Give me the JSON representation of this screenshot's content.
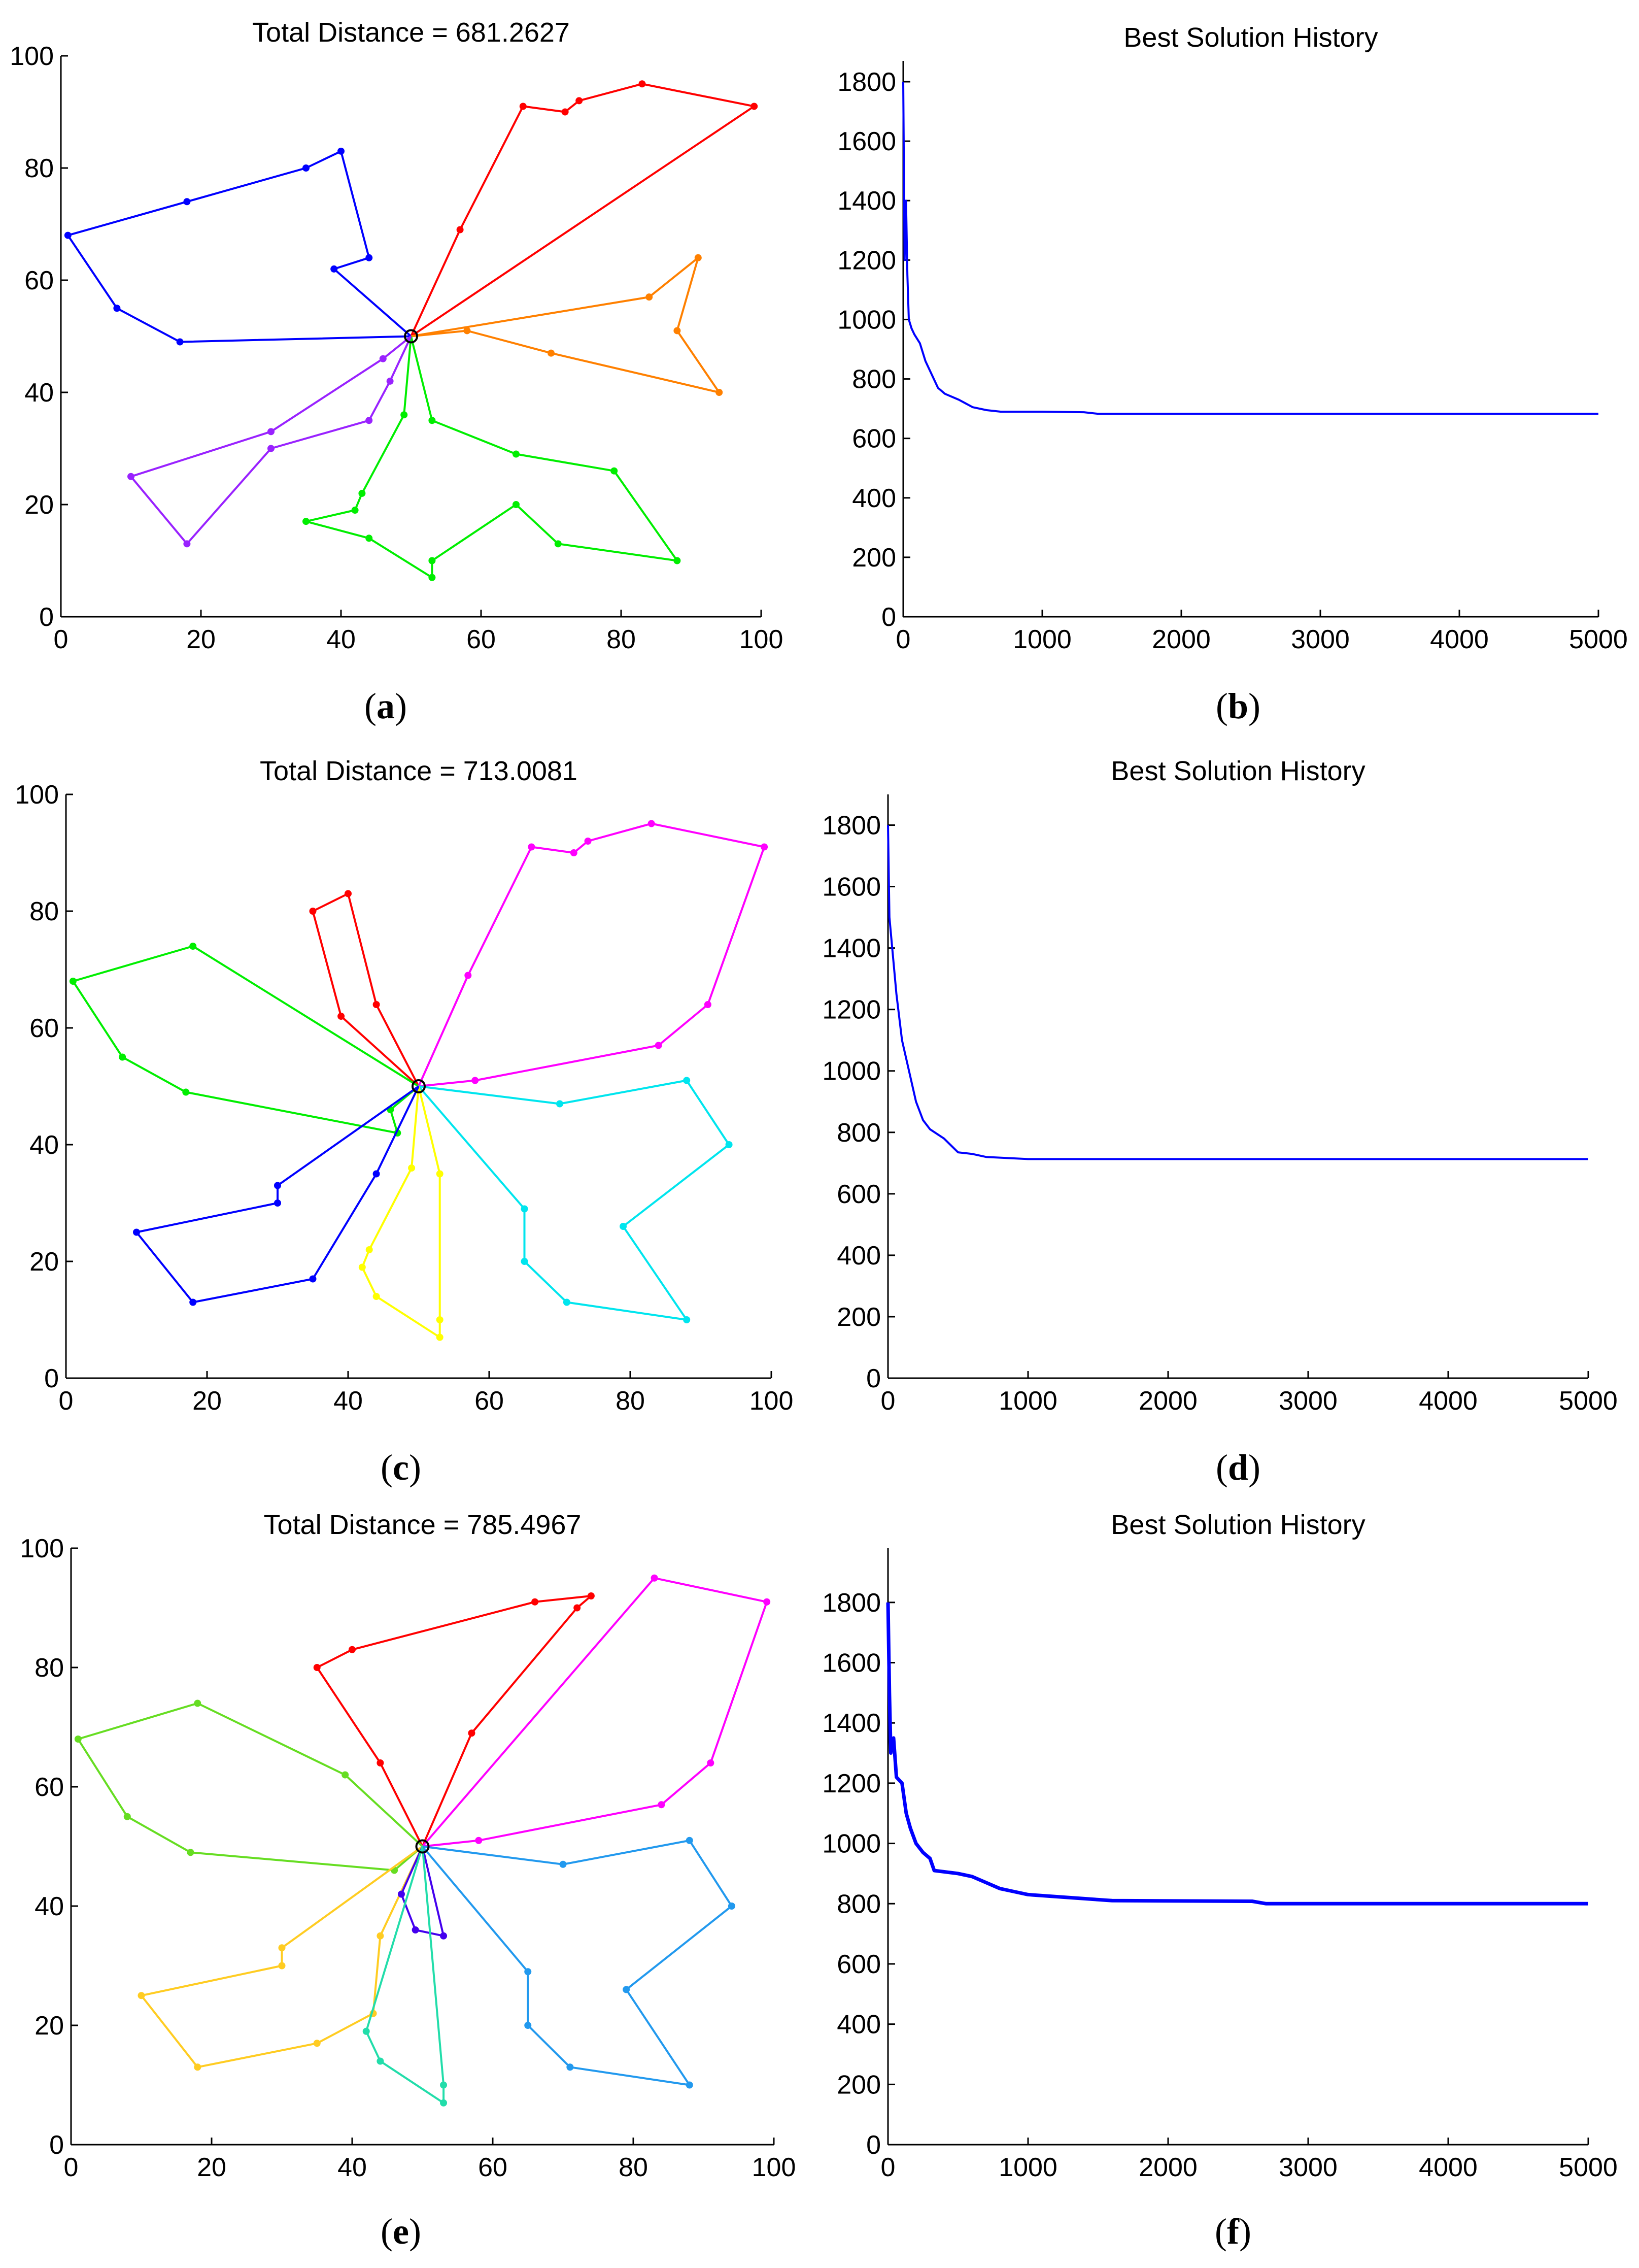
{
  "colors": {
    "red": "#ff0000",
    "blue": "#0000ff",
    "orange": "#ff8000",
    "green": "#00ee00",
    "purple": "#9922ff",
    "magenta": "#ff00ff",
    "cyan": "#00e5ee",
    "yellow": "#ffff00",
    "sky": "#2299ee",
    "lime": "#66dd22",
    "gold": "#ffcc22",
    "violet": "#4400ee",
    "teal": "#22ddaa",
    "depot": "#000000"
  },
  "chart_data": [
    {
      "panel": "a",
      "type": "line",
      "subtype": "route-map",
      "title": "Total Distance = 681.2627",
      "caption": "(a)",
      "xlim": [
        0,
        100
      ],
      "ylim": [
        0,
        100
      ],
      "xticks": [
        0,
        20,
        40,
        60,
        80,
        100
      ],
      "yticks": [
        0,
        20,
        40,
        60,
        80,
        100
      ],
      "depot": [
        50,
        50
      ],
      "series": [
        {
          "name": "route 1",
          "color": "red",
          "points": [
            [
              50,
              50
            ],
            [
              57,
              69
            ],
            [
              66,
              91
            ],
            [
              72,
              90
            ],
            [
              74,
              92
            ],
            [
              83,
              95
            ],
            [
              99,
              91
            ],
            [
              50,
              50
            ]
          ]
        },
        {
          "name": "route 2",
          "color": "blue",
          "points": [
            [
              50,
              50
            ],
            [
              39,
              62
            ],
            [
              44,
              64
            ],
            [
              40,
              83
            ],
            [
              35,
              80
            ],
            [
              18,
              74
            ],
            [
              1,
              68
            ],
            [
              8,
              55
            ],
            [
              17,
              49
            ],
            [
              50,
              50
            ]
          ]
        },
        {
          "name": "route 3",
          "color": "orange",
          "points": [
            [
              50,
              50
            ],
            [
              84,
              57
            ],
            [
              91,
              64
            ],
            [
              88,
              51
            ],
            [
              94,
              40
            ],
            [
              70,
              47
            ],
            [
              58,
              51
            ],
            [
              50,
              50
            ]
          ]
        },
        {
          "name": "route 4",
          "color": "green",
          "points": [
            [
              50,
              50
            ],
            [
              53,
              35
            ],
            [
              65,
              29
            ],
            [
              79,
              26
            ],
            [
              88,
              10
            ],
            [
              71,
              13
            ],
            [
              65,
              20
            ],
            [
              53,
              10
            ],
            [
              53,
              7
            ],
            [
              44,
              14
            ],
            [
              35,
              17
            ],
            [
              42,
              19
            ],
            [
              43,
              22
            ],
            [
              49,
              36
            ],
            [
              50,
              50
            ]
          ]
        },
        {
          "name": "route 5",
          "color": "purple",
          "points": [
            [
              50,
              50
            ],
            [
              46,
              46
            ],
            [
              30,
              33
            ],
            [
              10,
              25
            ],
            [
              18,
              13
            ],
            [
              30,
              30
            ],
            [
              44,
              35
            ],
            [
              47,
              42
            ],
            [
              50,
              50
            ]
          ]
        }
      ]
    },
    {
      "panel": "b",
      "type": "line",
      "title": "Best Solution History",
      "caption": "(b)",
      "xlim": [
        0,
        5000
      ],
      "ylim": [
        0,
        1870
      ],
      "xticks": [
        0,
        1000,
        2000,
        3000,
        4000,
        5000
      ],
      "yticks": [
        0,
        200,
        400,
        600,
        800,
        1000,
        1200,
        1400,
        1600,
        1800
      ],
      "series": [
        {
          "name": "best",
          "color": "blue",
          "points": [
            [
              0,
              1800
            ],
            [
              10,
              1200
            ],
            [
              20,
              1400
            ],
            [
              30,
              1150
            ],
            [
              40,
              1000
            ],
            [
              60,
              970
            ],
            [
              80,
              950
            ],
            [
              120,
              920
            ],
            [
              160,
              860
            ],
            [
              200,
              820
            ],
            [
              250,
              770
            ],
            [
              300,
              750
            ],
            [
              400,
              730
            ],
            [
              500,
              705
            ],
            [
              600,
              695
            ],
            [
              700,
              690
            ],
            [
              1000,
              690
            ],
            [
              1300,
              688
            ],
            [
              1400,
              683
            ],
            [
              2000,
              683
            ],
            [
              3000,
              683
            ],
            [
              5000,
              683
            ]
          ]
        }
      ]
    },
    {
      "panel": "c",
      "type": "line",
      "subtype": "route-map",
      "title": "Total Distance = 713.0081",
      "caption": "(c)",
      "xlim": [
        0,
        100
      ],
      "ylim": [
        0,
        100
      ],
      "xticks": [
        0,
        20,
        40,
        60,
        80,
        100
      ],
      "yticks": [
        0,
        20,
        40,
        60,
        80,
        100
      ],
      "depot": [
        50,
        50
      ],
      "series": [
        {
          "name": "route 1",
          "color": "red",
          "points": [
            [
              50,
              50
            ],
            [
              44,
              64
            ],
            [
              40,
              83
            ],
            [
              35,
              80
            ],
            [
              39,
              62
            ],
            [
              50,
              50
            ]
          ]
        },
        {
          "name": "route 2",
          "color": "green",
          "points": [
            [
              50,
              50
            ],
            [
              18,
              74
            ],
            [
              1,
              68
            ],
            [
              8,
              55
            ],
            [
              17,
              49
            ],
            [
              47,
              42
            ],
            [
              46,
              46
            ],
            [
              50,
              50
            ]
          ]
        },
        {
          "name": "route 3",
          "color": "magenta",
          "points": [
            [
              50,
              50
            ],
            [
              57,
              69
            ],
            [
              66,
              91
            ],
            [
              72,
              90
            ],
            [
              74,
              92
            ],
            [
              83,
              95
            ],
            [
              99,
              91
            ],
            [
              91,
              64
            ],
            [
              84,
              57
            ],
            [
              58,
              51
            ],
            [
              50,
              50
            ]
          ]
        },
        {
          "name": "route 4",
          "color": "cyan",
          "points": [
            [
              50,
              50
            ],
            [
              70,
              47
            ],
            [
              88,
              51
            ],
            [
              94,
              40
            ],
            [
              79,
              26
            ],
            [
              88,
              10
            ],
            [
              71,
              13
            ],
            [
              65,
              20
            ],
            [
              65,
              29
            ],
            [
              50,
              50
            ]
          ]
        },
        {
          "name": "route 5",
          "color": "yellow",
          "points": [
            [
              50,
              50
            ],
            [
              53,
              35
            ],
            [
              53,
              10
            ],
            [
              53,
              7
            ],
            [
              44,
              14
            ],
            [
              42,
              19
            ],
            [
              43,
              22
            ],
            [
              49,
              36
            ],
            [
              50,
              50
            ]
          ]
        },
        {
          "name": "route 6",
          "color": "blue",
          "points": [
            [
              50,
              50
            ],
            [
              30,
              33
            ],
            [
              30,
              30
            ],
            [
              10,
              25
            ],
            [
              18,
              13
            ],
            [
              35,
              17
            ],
            [
              44,
              35
            ],
            [
              50,
              50
            ]
          ]
        }
      ]
    },
    {
      "panel": "d",
      "type": "line",
      "title": "Best Solution History",
      "caption": "(d)",
      "xlim": [
        0,
        5000
      ],
      "ylim": [
        0,
        1900
      ],
      "xticks": [
        0,
        1000,
        2000,
        3000,
        4000,
        5000
      ],
      "yticks": [
        0,
        200,
        400,
        600,
        800,
        1000,
        1200,
        1400,
        1600,
        1800
      ],
      "series": [
        {
          "name": "best",
          "color": "blue",
          "points": [
            [
              0,
              1800
            ],
            [
              10,
              1500
            ],
            [
              30,
              1400
            ],
            [
              60,
              1250
            ],
            [
              100,
              1100
            ],
            [
              150,
              1000
            ],
            [
              200,
              900
            ],
            [
              250,
              840
            ],
            [
              300,
              810
            ],
            [
              400,
              780
            ],
            [
              500,
              735
            ],
            [
              600,
              730
            ],
            [
              700,
              720
            ],
            [
              1000,
              713
            ],
            [
              2000,
              713
            ],
            [
              3000,
              713
            ],
            [
              5000,
              713
            ]
          ]
        }
      ]
    },
    {
      "panel": "e",
      "type": "line",
      "subtype": "route-map",
      "title": "Total Distance = 785.4967",
      "caption": "(e)",
      "xlim": [
        0,
        100
      ],
      "ylim": [
        0,
        100
      ],
      "xticks": [
        0,
        20,
        40,
        60,
        80,
        100
      ],
      "yticks": [
        0,
        20,
        40,
        60,
        80,
        100
      ],
      "depot": [
        50,
        50
      ],
      "series": [
        {
          "name": "route 1",
          "color": "red",
          "points": [
            [
              50,
              50
            ],
            [
              57,
              69
            ],
            [
              72,
              90
            ],
            [
              74,
              92
            ],
            [
              66,
              91
            ],
            [
              40,
              83
            ],
            [
              35,
              80
            ],
            [
              44,
              64
            ],
            [
              50,
              50
            ]
          ]
        },
        {
          "name": "route 2",
          "color": "magenta",
          "points": [
            [
              50,
              50
            ],
            [
              83,
              95
            ],
            [
              99,
              91
            ],
            [
              91,
              64
            ],
            [
              84,
              57
            ],
            [
              58,
              51
            ],
            [
              50,
              50
            ]
          ]
        },
        {
          "name": "route 3",
          "color": "lime",
          "points": [
            [
              50,
              50
            ],
            [
              39,
              62
            ],
            [
              18,
              74
            ],
            [
              1,
              68
            ],
            [
              8,
              55
            ],
            [
              17,
              49
            ],
            [
              46,
              46
            ],
            [
              50,
              50
            ]
          ]
        },
        {
          "name": "route 4",
          "color": "gold",
          "points": [
            [
              50,
              50
            ],
            [
              30,
              33
            ],
            [
              30,
              30
            ],
            [
              10,
              25
            ],
            [
              18,
              13
            ],
            [
              35,
              17
            ],
            [
              43,
              22
            ],
            [
              44,
              35
            ],
            [
              50,
              50
            ]
          ]
        },
        {
          "name": "route 5",
          "color": "sky",
          "points": [
            [
              50,
              50
            ],
            [
              70,
              47
            ],
            [
              88,
              51
            ],
            [
              94,
              40
            ],
            [
              79,
              26
            ],
            [
              88,
              10
            ],
            [
              71,
              13
            ],
            [
              65,
              20
            ],
            [
              65,
              29
            ],
            [
              50,
              50
            ]
          ]
        },
        {
          "name": "route 6",
          "color": "violet",
          "points": [
            [
              50,
              50
            ],
            [
              47,
              42
            ],
            [
              49,
              36
            ],
            [
              53,
              35
            ],
            [
              50,
              50
            ]
          ]
        },
        {
          "name": "route 7",
          "color": "teal",
          "points": [
            [
              50,
              50
            ],
            [
              53,
              10
            ],
            [
              53,
              7
            ],
            [
              44,
              14
            ],
            [
              42,
              19
            ],
            [
              50,
              50
            ]
          ]
        }
      ]
    },
    {
      "panel": "f",
      "type": "line",
      "title": "Best Solution History",
      "caption": "(f)",
      "xlim": [
        0,
        5000
      ],
      "ylim": [
        0,
        1980
      ],
      "xticks": [
        0,
        1000,
        2000,
        3000,
        4000,
        5000
      ],
      "yticks": [
        0,
        200,
        400,
        600,
        800,
        1000,
        1200,
        1400,
        1600,
        1800
      ],
      "series": [
        {
          "name": "best",
          "color": "blue",
          "points": [
            [
              0,
              1800
            ],
            [
              10,
              1500
            ],
            [
              20,
              1300
            ],
            [
              40,
              1350
            ],
            [
              60,
              1220
            ],
            [
              100,
              1200
            ],
            [
              130,
              1100
            ],
            [
              160,
              1050
            ],
            [
              200,
              1000
            ],
            [
              250,
              970
            ],
            [
              300,
              950
            ],
            [
              330,
              910
            ],
            [
              500,
              900
            ],
            [
              600,
              890
            ],
            [
              700,
              870
            ],
            [
              800,
              850
            ],
            [
              900,
              840
            ],
            [
              1000,
              830
            ],
            [
              1300,
              820
            ],
            [
              1600,
              810
            ],
            [
              2600,
              808
            ],
            [
              2700,
              800
            ],
            [
              5000,
              800
            ]
          ]
        }
      ]
    }
  ]
}
